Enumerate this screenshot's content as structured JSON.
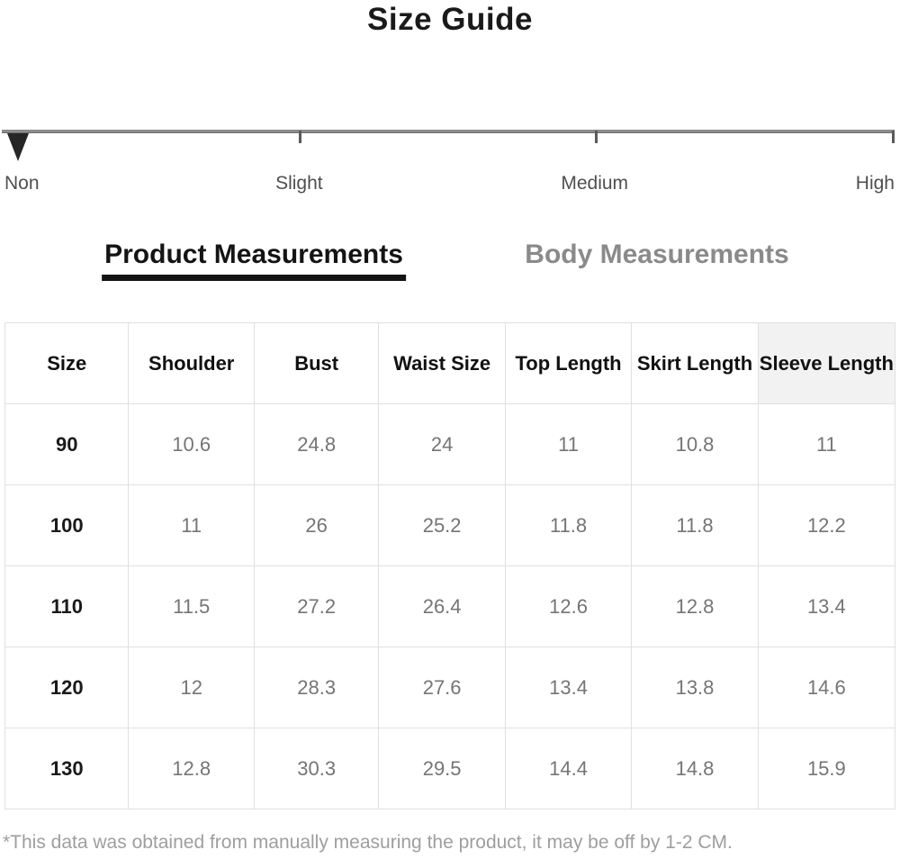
{
  "page": {
    "title": "Size Guide"
  },
  "transparency_scale": {
    "labels": [
      "Non",
      "Slight",
      "Medium",
      "High"
    ],
    "marker_position": "Non",
    "marker_icon": "triangle-down-icon"
  },
  "sections": {
    "product_heading": "Product Measurements",
    "body_heading": "Body Measurements"
  },
  "table": {
    "headers": [
      "Size",
      "Shoulder",
      "Bust",
      "Waist Size",
      "Top Length",
      "Skirt Length",
      "Sleeve Length"
    ],
    "highlighted_header": "Sleeve Length",
    "rows": [
      [
        "90",
        "10.6",
        "24.8",
        "24",
        "11",
        "10.8",
        "11"
      ],
      [
        "100",
        "11",
        "26",
        "25.2",
        "11.8",
        "11.8",
        "12.2"
      ],
      [
        "110",
        "11.5",
        "27.2",
        "26.4",
        "12.6",
        "12.8",
        "13.4"
      ],
      [
        "120",
        "12",
        "28.3",
        "27.6",
        "13.4",
        "13.8",
        "14.6"
      ],
      [
        "130",
        "12.8",
        "30.3",
        "29.5",
        "14.4",
        "14.8",
        "15.9"
      ]
    ]
  },
  "footer": {
    "note": "*This data was obtained from manually measuring the product, it may be off by 1-2 CM."
  },
  "colors": {
    "title_text": "#1a1a1a",
    "scale_line": "#8c8c8c",
    "scale_marker": "#262626",
    "scale_label_text": "#4f4f4f",
    "product_heading_text": "#141414",
    "body_heading_text": "#8a8a8a",
    "table_border": "#e0e0e0",
    "table_header_text": "#111111",
    "table_value_text": "#757575",
    "highlighted_header_bg": "#f2f2f2",
    "footer_text": "#9e9e9e",
    "background": "#ffffff"
  }
}
